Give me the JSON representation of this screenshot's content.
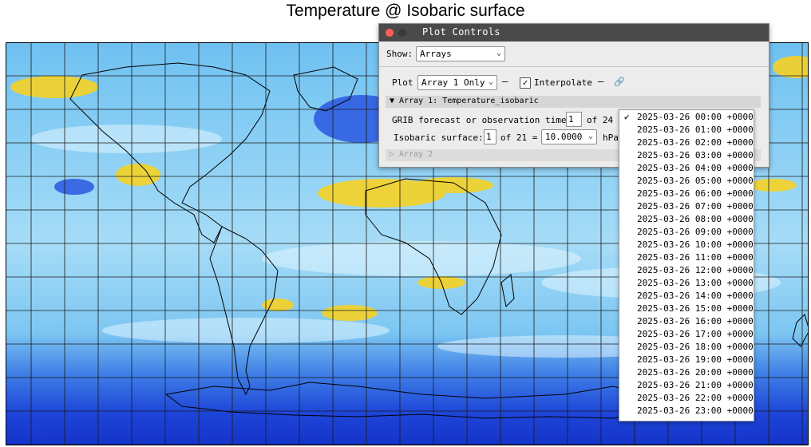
{
  "title": "Temperature @ Isobaric surface",
  "window": {
    "title": "Plot Controls",
    "show_label": "Show:",
    "show_value": "Arrays",
    "plot_label": "Plot",
    "plot_value": "Array 1 Only",
    "interpolate_label": "Interpolate",
    "interpolate_checked": true,
    "array1_header": "▼ Array 1: Temperature_isobaric",
    "time_label": "GRIB forecast or observation time:",
    "time_index": "1",
    "time_of": "of 24 =",
    "surface_label": "Isobaric surface:",
    "surface_index": "1",
    "surface_of": "of 21 =",
    "surface_value": "10.0000",
    "surface_unit": "hPa",
    "array2_header": "▷ Array 2"
  },
  "dropdown": {
    "selected_index": 0,
    "options": [
      "2025-03-26 00:00 +0000",
      "2025-03-26 01:00 +0000",
      "2025-03-26 02:00 +0000",
      "2025-03-26 03:00 +0000",
      "2025-03-26 04:00 +0000",
      "2025-03-26 05:00 +0000",
      "2025-03-26 06:00 +0000",
      "2025-03-26 07:00 +0000",
      "2025-03-26 08:00 +0000",
      "2025-03-26 09:00 +0000",
      "2025-03-26 10:00 +0000",
      "2025-03-26 11:00 +0000",
      "2025-03-26 12:00 +0000",
      "2025-03-26 13:00 +0000",
      "2025-03-26 14:00 +0000",
      "2025-03-26 15:00 +0000",
      "2025-03-26 16:00 +0000",
      "2025-03-26 17:00 +0000",
      "2025-03-26 18:00 +0000",
      "2025-03-26 19:00 +0000",
      "2025-03-26 20:00 +0000",
      "2025-03-26 21:00 +0000",
      "2025-03-26 22:00 +0000",
      "2025-03-26 23:00 +0000"
    ]
  },
  "colors": {
    "cold": "#1a3cd6",
    "cool": "#6ec2f0",
    "pale": "#cfeeff",
    "warm": "#f7d020"
  }
}
